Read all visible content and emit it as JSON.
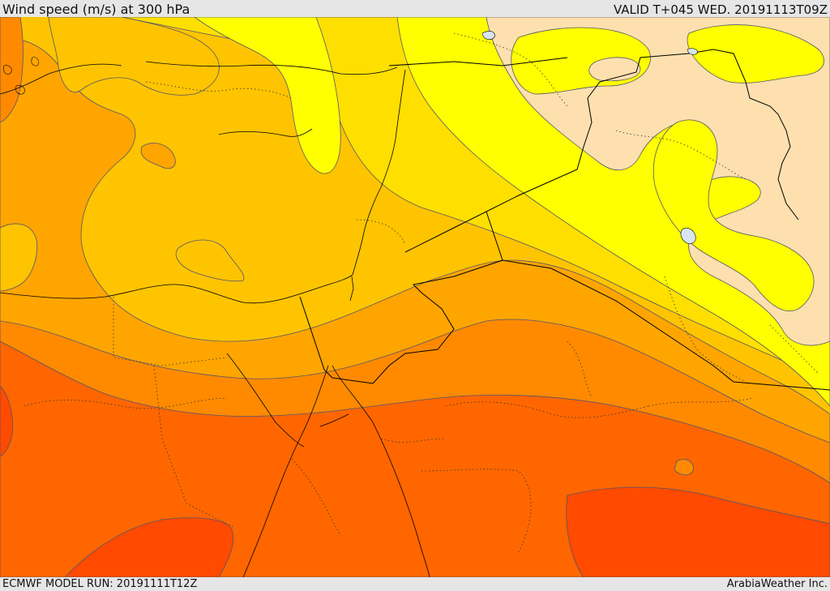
{
  "header": {
    "title": "Wind speed (m/s) at 300 hPa",
    "valid_time": "VALID T+045 WED. 20191113T09Z"
  },
  "footer": {
    "model_run": "ECMWF MODEL RUN: 20191111T12Z",
    "credit": "ArabiaWeather Inc."
  },
  "map": {
    "colors": {
      "light_tan": "#fde0ae",
      "yellow": "#ffff00",
      "light_gold": "#ffdf00",
      "gold": "#ffc400",
      "amber": "#ffa500",
      "orange": "#ff8a00",
      "deep_orange": "#ff6600",
      "red_orange": "#ff4a00",
      "lake": "#d8e4f0",
      "contour": "#55556a",
      "border": "#000000"
    }
  }
}
